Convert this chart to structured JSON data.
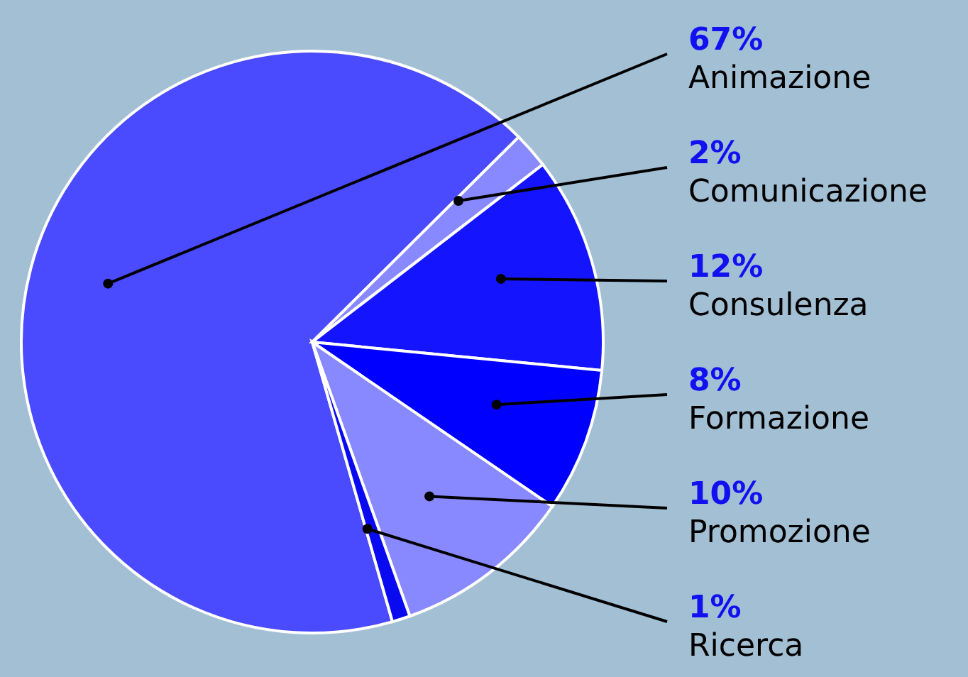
{
  "chart_data": {
    "type": "pie",
    "categories": [
      "Animazione",
      "Comunicazione",
      "Consulenza",
      "Formazione",
      "Promozione",
      "Ricerca"
    ],
    "values": [
      67,
      2,
      12,
      8,
      10,
      1
    ],
    "colors": [
      "#4a4aff",
      "#8888ff",
      "#1414ff",
      "#0000ff",
      "#8888ff",
      "#0a0af0"
    ],
    "value_labels": [
      "67%",
      "2%",
      "12%",
      "8%",
      "10%",
      "1%"
    ],
    "legend": false
  }
}
